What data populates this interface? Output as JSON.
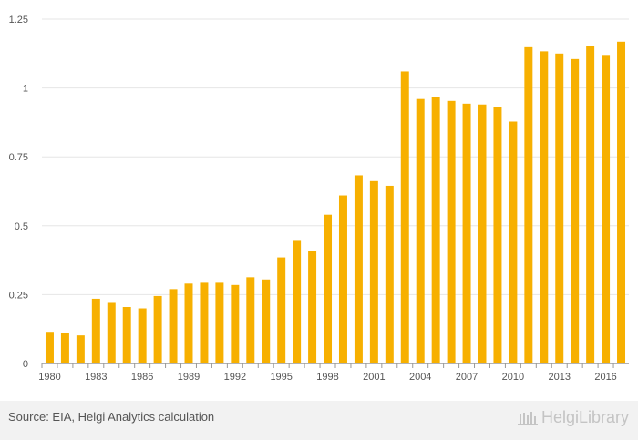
{
  "chart_data": {
    "type": "bar",
    "title": "",
    "xlabel": "",
    "ylabel": "",
    "ylim": [
      0,
      1.25
    ],
    "y_ticks": [
      0,
      0.25,
      0.5,
      0.75,
      1,
      1.25
    ],
    "y_tick_labels": [
      "0",
      "0.25",
      "0.5",
      "0.75",
      "1",
      "1.25"
    ],
    "grid": true,
    "bar_color": "#f7b000",
    "categories": [
      "1980",
      "1981",
      "1982",
      "1983",
      "1984",
      "1985",
      "1986",
      "1987",
      "1988",
      "1989",
      "1990",
      "1991",
      "1992",
      "1993",
      "1994",
      "1995",
      "1996",
      "1997",
      "1998",
      "1999",
      "2000",
      "2001",
      "2002",
      "2003",
      "2004",
      "2005",
      "2006",
      "2007",
      "2008",
      "2009",
      "2010",
      "2011",
      "2012",
      "2013",
      "2014",
      "2015",
      "2016",
      "2017"
    ],
    "x_tick_labels": [
      "1980",
      "1983",
      "1986",
      "1989",
      "1992",
      "1995",
      "1998",
      "2001",
      "2004",
      "2007",
      "2010",
      "2013",
      "2016"
    ],
    "values": [
      0.115,
      0.112,
      0.102,
      0.235,
      0.22,
      0.205,
      0.2,
      0.245,
      0.27,
      0.29,
      0.293,
      0.293,
      0.285,
      0.313,
      0.305,
      0.385,
      0.445,
      0.41,
      0.54,
      0.61,
      0.683,
      0.662,
      0.645,
      1.06,
      0.96,
      0.967,
      0.953,
      0.943,
      0.94,
      0.93,
      0.878,
      1.148,
      1.133,
      1.125,
      1.105,
      1.152,
      1.12,
      1.168
    ]
  },
  "footer": {
    "source": "Source: EIA, Helgi Analytics calculation",
    "brand": "HelgiLibrary"
  }
}
